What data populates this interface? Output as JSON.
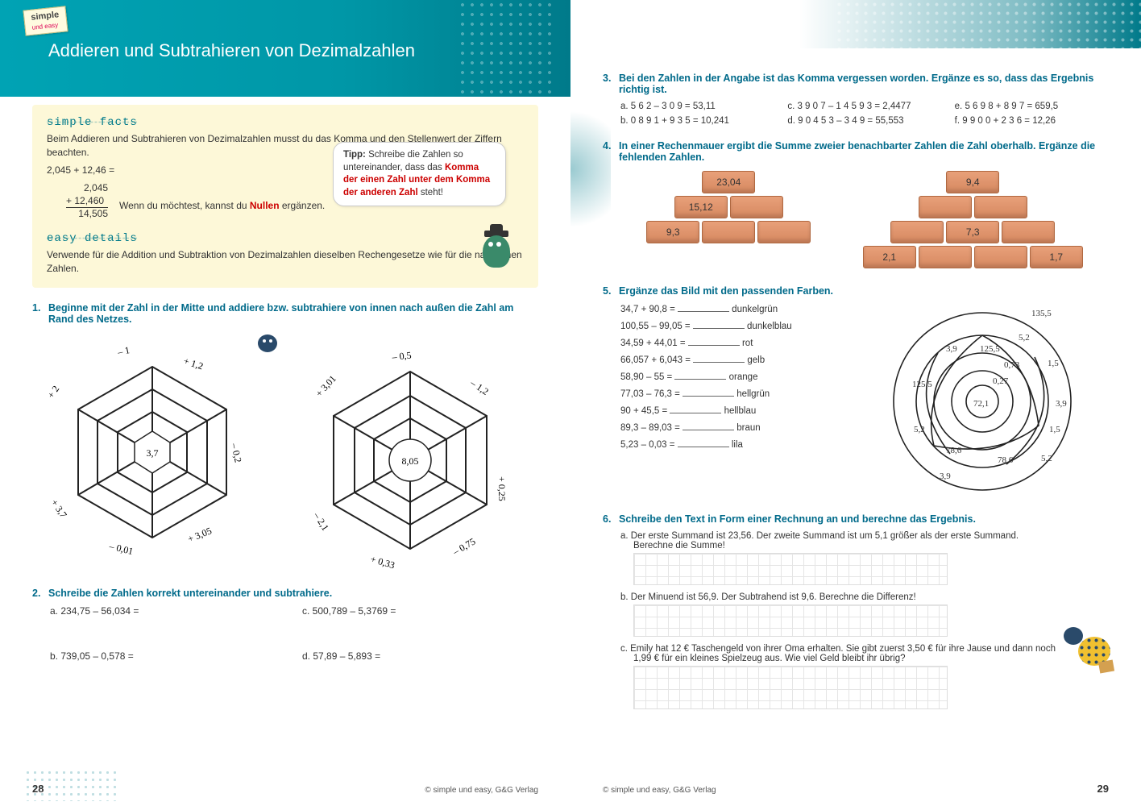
{
  "brand": {
    "line1": "simple",
    "line2": "und easy"
  },
  "header_title": "Addieren und Subtrahieren von Dezimalzahlen",
  "simple_facts": {
    "heading": "simple facts",
    "text1": "Beim Addieren und Subtrahieren von Dezimalzahlen musst du das Komma und den Stellenwert der Ziffern beachten.",
    "exprline": "2,045 + 12,46 =",
    "calc1": "2,045",
    "calc2": "+ 12,460",
    "calc3": "14,505",
    "hint": "Wenn du möchtest, kannst du ",
    "hint_red": "Nullen",
    "hint2": " ergänzen."
  },
  "speech": {
    "tip": "Tipp:",
    "t1": " Schreibe die Zahlen so untereinander, dass das ",
    "k1": "Komma der einen Zahl unter dem Komma der anderen Zahl",
    "t2": " steht!"
  },
  "easy_details": {
    "heading": "easy details",
    "text": "Verwende für die Addition und Subtraktion von Dezimalzahlen dieselben Rechengesetze wie für die natürlichen Zahlen."
  },
  "task1": {
    "num": "1.",
    "text": "Beginne mit der Zahl in der Mitte und addiere bzw. subtrahiere von innen nach außen die Zahl am Rand des Netzes.",
    "web1": {
      "center": "3,7",
      "labels": [
        "– 1",
        "+ 1,2",
        "– 0,2",
        "+ 3,05",
        "– 0,01",
        "+ 3,7",
        "+ 2"
      ]
    },
    "web2": {
      "center": "8,05",
      "labels": [
        "– 0,5",
        "– 1,2",
        "+ 0,25",
        "– 0,75",
        "+ 0,33",
        "– 2,1",
        "+ 3,01"
      ]
    }
  },
  "task2": {
    "num": "2.",
    "text": "Schreibe die Zahlen korrekt untereinander und subtrahiere.",
    "a": "a.  234,75 – 56,034 =",
    "b": "b.  739,05 – 0,578 =",
    "c": "c.  500,789 – 5,3769 =",
    "d": "d.  57,89 – 5,893 ="
  },
  "task3": {
    "num": "3.",
    "text": "Bei den Zahlen in der Angabe ist das Komma vergessen worden. Ergänze es so, dass das Ergebnis richtig ist.",
    "a": "a.  5 6 2 – 3 0 9 = 53,11",
    "b": "b.  0 8 9 1 + 9 3 5 = 10,241",
    "c": "c.  3 9 0 7 – 1 4 5 9 3 = 2,4477",
    "d": "d.  9 0 4 5 3 – 3 4 9 = 55,553",
    "e": "e.  5 6 9 8 + 8 9 7 = 659,5",
    "f": "f.  9 9 0 0 + 2 3 6 = 12,26"
  },
  "task4": {
    "num": "4.",
    "text": "In einer Rechenmauer ergibt die Summe zweier benachbarter Zahlen die Zahl oberhalb. Ergänze die fehlenden Zahlen.",
    "wall1": {
      "top": "23,04",
      "mid": [
        "15,12",
        ""
      ],
      "bot": [
        "9,3",
        "",
        ""
      ]
    },
    "wall2": {
      "top": "9,4",
      "mid": [
        "",
        "7,3",
        ""
      ],
      "bot": [
        "2,1",
        "",
        "",
        "1,7"
      ]
    }
  },
  "task5": {
    "num": "5.",
    "text": "Ergänze das Bild mit den passenden Farben.",
    "rows": [
      {
        "expr": "34,7 + 90,8 =",
        "color": "dunkelgrün"
      },
      {
        "expr": "100,55 – 99,05 =",
        "color": "dunkelblau"
      },
      {
        "expr": "34,59 + 44,01 =",
        "color": "rot"
      },
      {
        "expr": "66,057 + 6,043 =",
        "color": "gelb"
      },
      {
        "expr": "58,90 – 55 =",
        "color": "orange"
      },
      {
        "expr": "77,03 – 76,3 =",
        "color": "hellgrün"
      },
      {
        "expr": "90 + 45,5 =",
        "color": "hellblau"
      },
      {
        "expr": "89,3 – 89,03 =",
        "color": "braun"
      },
      {
        "expr": "5,23 – 0,03 =",
        "color": "lila"
      }
    ],
    "circle_labels": [
      "135,5",
      "5,2",
      "3,9",
      "125,5",
      "0,73",
      "1,5",
      "125,5",
      "0,27",
      "3,9",
      "72,1",
      "5,2",
      "1,5",
      "78,6",
      "78,6",
      "5,2",
      "3,9"
    ]
  },
  "task6": {
    "num": "6.",
    "text": "Schreibe den Text in Form einer Rechnung an und berechne das Ergebnis.",
    "a1": "a.  Der erste Summand ist 23,56. Der zweite Summand ist um 5,1 größer als der erste Summand.",
    "a2": "Berechne die Summe!",
    "b": "b.  Der Minuend ist 56,9. Der Subtrahend ist 9,6. Berechne die Differenz!",
    "c1": "c.  Emily hat 12 € Taschengeld von ihrer Oma erhalten. Sie gibt zuerst 3,50 € für ihre Jause und dann noch",
    "c2": "1,99 € für ein kleines Spielzeug aus. Wie viel Geld bleibt ihr übrig?"
  },
  "footer": {
    "copyright": "© simple und easy, G&G Verlag",
    "page_left": "28",
    "page_right": "29"
  },
  "colors": {
    "teal": "#007a8a",
    "task": "#006a8a",
    "yellowbg": "#fdf8d8",
    "brick": "#d68860"
  }
}
